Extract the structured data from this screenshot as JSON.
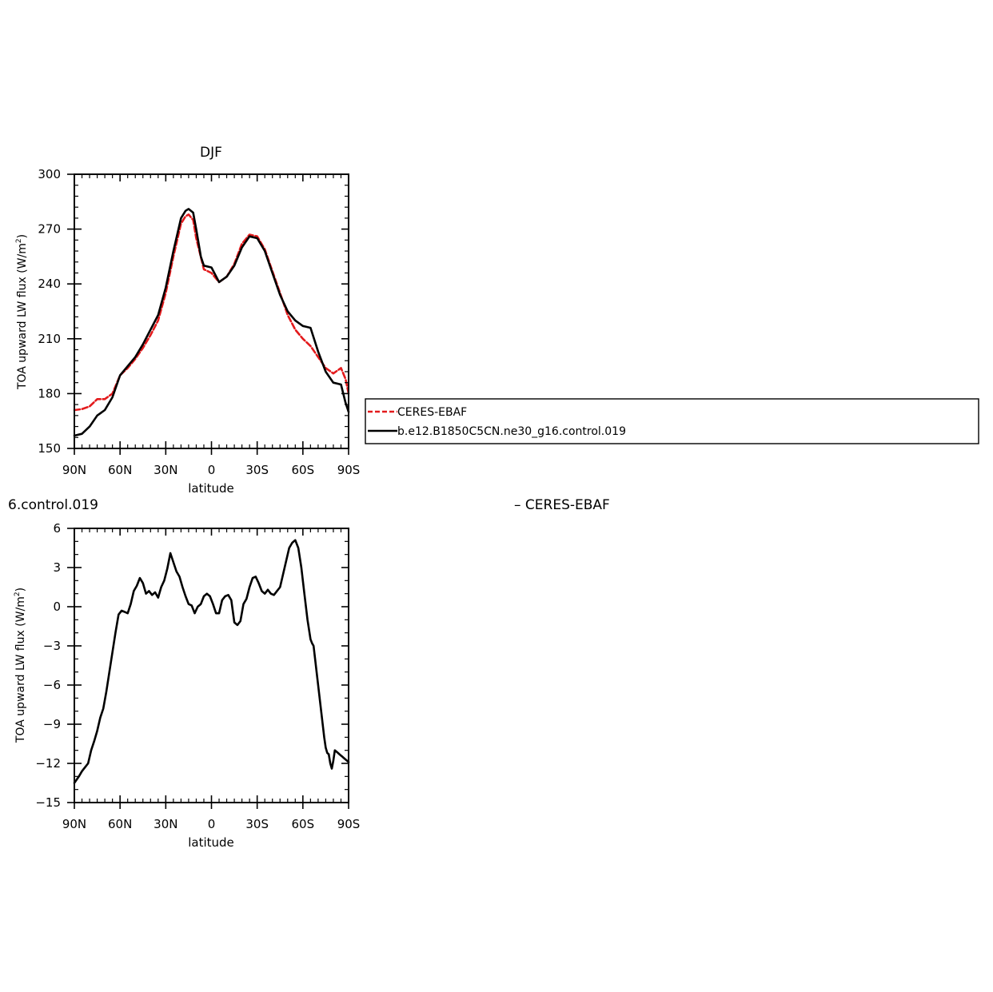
{
  "chart_data": [
    {
      "type": "line",
      "title": "DJF",
      "xlabel": "latitude",
      "ylabel_main": "TOA upward LW flux (W/m",
      "ylabel_sup": "2",
      "ylabel_tail": ")",
      "xlim": [
        90,
        -90
      ],
      "ylim": [
        150,
        300
      ],
      "x_ticks": [
        {
          "value": 90,
          "label": "90N"
        },
        {
          "value": 60,
          "label": "60N"
        },
        {
          "value": 30,
          "label": "30N"
        },
        {
          "value": 0,
          "label": "0"
        },
        {
          "value": -30,
          "label": "30S"
        },
        {
          "value": -60,
          "label": "60S"
        },
        {
          "value": -90,
          "label": "90S"
        }
      ],
      "y_ticks": [
        {
          "value": 150,
          "label": "150"
        },
        {
          "value": 180,
          "label": "180"
        },
        {
          "value": 210,
          "label": "210"
        },
        {
          "value": 240,
          "label": "240"
        },
        {
          "value": 270,
          "label": "270"
        },
        {
          "value": 300,
          "label": "300"
        }
      ],
      "legend": {
        "placement": "right",
        "entries": [
          {
            "label": "CERES-EBAF",
            "color": "#e31a1c",
            "dash": "dashed"
          },
          {
            "label": "b.e12.B1850C5CN.ne30_g16.control.019",
            "color": "#000000",
            "dash": "solid"
          }
        ]
      },
      "series": [
        {
          "color": "#e31a1c",
          "dash": "dashed",
          "x": [
            90,
            85,
            80,
            75,
            70,
            65,
            60,
            55,
            50,
            45,
            40,
            35,
            30,
            25,
            20,
            17,
            15,
            12,
            10,
            5,
            0,
            -5,
            -10,
            -15,
            -20,
            -25,
            -30,
            -35,
            -40,
            -45,
            -50,
            -55,
            -60,
            -65,
            -70,
            -75,
            -80,
            -85,
            -88,
            -90
          ],
          "y": [
            171,
            171.5,
            173,
            177,
            177,
            180,
            190,
            194,
            199,
            205,
            212,
            220,
            235,
            255,
            273,
            277,
            278,
            275,
            265,
            248,
            246,
            241,
            244,
            251,
            262,
            267,
            266,
            259,
            247,
            235,
            223,
            215,
            210,
            206,
            200,
            194,
            191,
            194,
            188,
            180
          ]
        },
        {
          "color": "#000000",
          "dash": "solid",
          "x": [
            90,
            85,
            80,
            75,
            70,
            65,
            60,
            55,
            50,
            45,
            40,
            35,
            30,
            25,
            20,
            17,
            15,
            12,
            10,
            7,
            5,
            0,
            -5,
            -10,
            -15,
            -20,
            -25,
            -30,
            -35,
            -40,
            -45,
            -50,
            -55,
            -60,
            -65,
            -70,
            -75,
            -80,
            -85,
            -88,
            -90
          ],
          "y": [
            157,
            158,
            162,
            168,
            171,
            178,
            190,
            195,
            200,
            207,
            215,
            223,
            238,
            258,
            276,
            280,
            281,
            279,
            270,
            255,
            250,
            249,
            241,
            244,
            250,
            260,
            266,
            265,
            258,
            246,
            234,
            225,
            220,
            217,
            216,
            203,
            192,
            186,
            185,
            175,
            170
          ]
        }
      ]
    },
    {
      "type": "line",
      "title_left": "6.control.019",
      "title_right": "– CERES-EBAF",
      "xlabel": "latitude",
      "ylabel_main": "TOA upward LW flux (W/m",
      "ylabel_sup": "2",
      "ylabel_tail": ")",
      "xlim": [
        90,
        -90
      ],
      "ylim": [
        -15,
        6
      ],
      "x_ticks": [
        {
          "value": 90,
          "label": "90N"
        },
        {
          "value": 60,
          "label": "60N"
        },
        {
          "value": 30,
          "label": "30N"
        },
        {
          "value": 0,
          "label": "0"
        },
        {
          "value": -30,
          "label": "30S"
        },
        {
          "value": -60,
          "label": "60S"
        },
        {
          "value": -90,
          "label": "90S"
        }
      ],
      "y_ticks": [
        {
          "value": -15,
          "label": "−15"
        },
        {
          "value": -12,
          "label": "−12"
        },
        {
          "value": -9,
          "label": "−9"
        },
        {
          "value": -6,
          "label": "−6"
        },
        {
          "value": -3,
          "label": "−3"
        },
        {
          "value": 0,
          "label": "0"
        },
        {
          "value": 3,
          "label": "3"
        },
        {
          "value": 6,
          "label": "6"
        }
      ],
      "series": [
        {
          "color": "#000000",
          "dash": "solid",
          "x": [
            90,
            87,
            85,
            83,
            81,
            79,
            77,
            75,
            73,
            71,
            69,
            67,
            65,
            63,
            61,
            59,
            57,
            55,
            53,
            51,
            49,
            47,
            45,
            43,
            41,
            39,
            37,
            35,
            33,
            31,
            29,
            27,
            25,
            23,
            21,
            19,
            17,
            15,
            13,
            11,
            9,
            7,
            5,
            3,
            1,
            -1,
            -3,
            -5,
            -7,
            -9,
            -11,
            -13,
            -15,
            -17,
            -19,
            -21,
            -23,
            -25,
            -27,
            -29,
            -31,
            -33,
            -35,
            -37,
            -39,
            -41,
            -43,
            -45,
            -47,
            -49,
            -51,
            -53,
            -55,
            -57,
            -59,
            -61,
            -63,
            -65,
            -66,
            -67,
            -68,
            -69,
            -70,
            -71,
            -72,
            -73,
            -74,
            -75,
            -76,
            -77,
            -78,
            -79,
            -80,
            -81,
            -82,
            -83,
            -84,
            -85,
            -86,
            -87,
            -88,
            -89,
            -90
          ],
          "y": [
            -13.5,
            -13,
            -12.6,
            -12.3,
            -12,
            -11,
            -10.3,
            -9.5,
            -8.5,
            -7.8,
            -6.5,
            -5,
            -3.5,
            -2,
            -0.6,
            -0.3,
            -0.4,
            -0.5,
            0.2,
            1.2,
            1.6,
            2.2,
            1.8,
            1.0,
            1.2,
            0.9,
            1.1,
            0.7,
            1.5,
            2.0,
            2.9,
            4.1,
            3.4,
            2.7,
            2.3,
            1.5,
            0.8,
            0.2,
            0.1,
            -0.5,
            0.0,
            0.2,
            0.8,
            1.0,
            0.8,
            0.2,
            -0.5,
            -0.5,
            0.5,
            0.8,
            0.9,
            0.5,
            -1.2,
            -1.4,
            -1.1,
            0.2,
            0.6,
            1.5,
            2.2,
            2.3,
            1.8,
            1.2,
            1.0,
            1.3,
            1.0,
            0.9,
            1.2,
            1.5,
            2.5,
            3.5,
            4.5,
            4.9,
            5.1,
            4.5,
            3.0,
            1.0,
            -1.0,
            -2.5,
            -2.8,
            -3.0,
            -4.0,
            -5.0,
            -6.0,
            -7.0,
            -8.0,
            -9.0,
            -10.0,
            -10.8,
            -11.2,
            -11.3,
            -12.0,
            -12.4,
            -11.8,
            -11.0,
            -11.1,
            -11.2,
            -11.3,
            -11.4,
            -11.5,
            -11.6,
            -11.7,
            -11.8,
            -11.9
          ]
        }
      ]
    }
  ]
}
